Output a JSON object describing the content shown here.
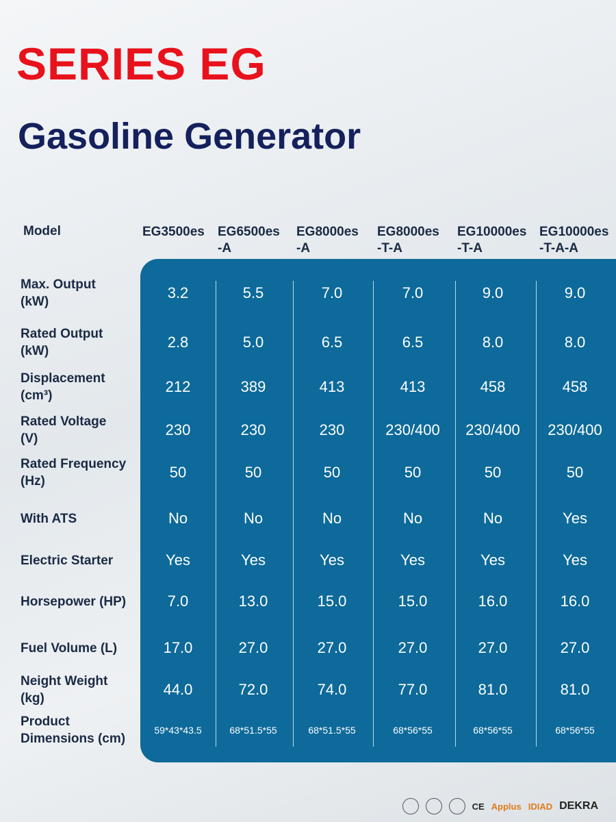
{
  "header": {
    "title": "SERIES EG",
    "subtitle": "Gasoline Generator"
  },
  "table": {
    "corner": "Model",
    "columns": [
      [
        "EG3500es"
      ],
      [
        "EG6500es",
        "-A"
      ],
      [
        "EG8000es",
        "-A"
      ],
      [
        "EG8000es",
        "-T-A"
      ],
      [
        "EG10000es",
        "-T-A"
      ],
      [
        "EG10000es",
        "-T-A-A"
      ]
    ],
    "rows": [
      {
        "label": [
          "Max. Output",
          "(kW)"
        ],
        "values": [
          "3.2",
          "5.5",
          "7.0",
          "7.0",
          "9.0",
          "9.0"
        ]
      },
      {
        "label": [
          "Rated Output",
          "(kW)"
        ],
        "values": [
          "2.8",
          "5.0",
          "6.5",
          "6.5",
          "8.0",
          "8.0"
        ]
      },
      {
        "label": [
          "Displacement",
          "(cm³)"
        ],
        "values": [
          "212",
          "389",
          "413",
          "413",
          "458",
          "458"
        ]
      },
      {
        "label": [
          "Rated Voltage",
          "(V)"
        ],
        "values": [
          "230",
          "230",
          "230",
          "230/400",
          "230/400",
          "230/400"
        ]
      },
      {
        "label": [
          "Rated Frequency",
          "(Hz)"
        ],
        "values": [
          "50",
          "50",
          "50",
          "50",
          "50",
          "50"
        ]
      },
      {
        "label": [
          "With ATS"
        ],
        "values": [
          "No",
          "No",
          "No",
          "No",
          "No",
          "Yes"
        ]
      },
      {
        "label": [
          "Electric Starter"
        ],
        "values": [
          "Yes",
          "Yes",
          "Yes",
          "Yes",
          "Yes",
          "Yes"
        ]
      },
      {
        "label": [
          "Horsepower (HP)"
        ],
        "values": [
          "7.0",
          "13.0",
          "15.0",
          "15.0",
          "16.0",
          "16.0"
        ]
      },
      {
        "label": [
          "Fuel Volume (L)"
        ],
        "values": [
          "17.0",
          "27.0",
          "27.0",
          "27.0",
          "27.0",
          "27.0"
        ]
      },
      {
        "label": [
          "Neight Weight",
          "(kg)"
        ],
        "values": [
          "44.0",
          "72.0",
          "74.0",
          "77.0",
          "81.0",
          "81.0"
        ]
      },
      {
        "label": [
          "Product",
          "Dimensions (cm)"
        ],
        "values": [
          "59*43*43.5",
          "68*51.5*55",
          "68*51.5*55",
          "68*56*55",
          "68*56*55",
          "68*56*55"
        ]
      }
    ]
  },
  "certifications": [
    "CE",
    "Applus",
    "IDIAD",
    "DEKRA"
  ]
}
